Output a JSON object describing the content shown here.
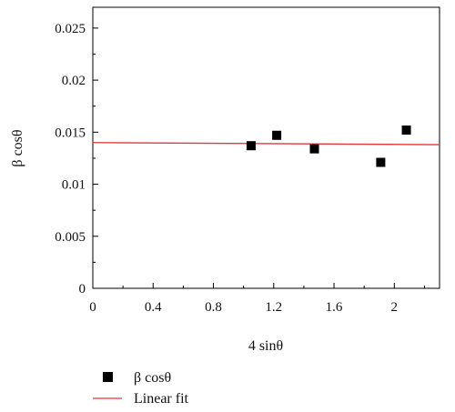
{
  "chart_data": {
    "type": "scatter",
    "xlabel": "4 sinθ",
    "ylabel": "β cosθ",
    "xlim": [
      0,
      2.3
    ],
    "ylim": [
      0,
      0.027
    ],
    "x_ticks": [
      0,
      0.4,
      0.8,
      1.2,
      1.6,
      2
    ],
    "x_tick_labels": [
      "0",
      "0.4",
      "0.8",
      "1.2",
      "1.6",
      "2"
    ],
    "y_ticks": [
      0,
      0.005,
      0.01,
      0.015,
      0.02,
      0.025
    ],
    "y_tick_labels": [
      "0",
      "0.005",
      "0.01",
      "0.015",
      "0.02",
      "0.025"
    ],
    "series": [
      {
        "name": "β cosθ",
        "kind": "points",
        "marker": "square",
        "color": "#000000",
        "x": [
          1.05,
          1.22,
          1.47,
          1.91,
          2.08
        ],
        "y": [
          0.0137,
          0.0147,
          0.0134,
          0.0121,
          0.0152
        ]
      },
      {
        "name": "Linear fit",
        "kind": "line",
        "color": "#e0383b",
        "x": [
          0,
          2.3
        ],
        "y": [
          0.014,
          0.0138
        ]
      }
    ],
    "legend_position": "bottom-left",
    "grid": false
  }
}
